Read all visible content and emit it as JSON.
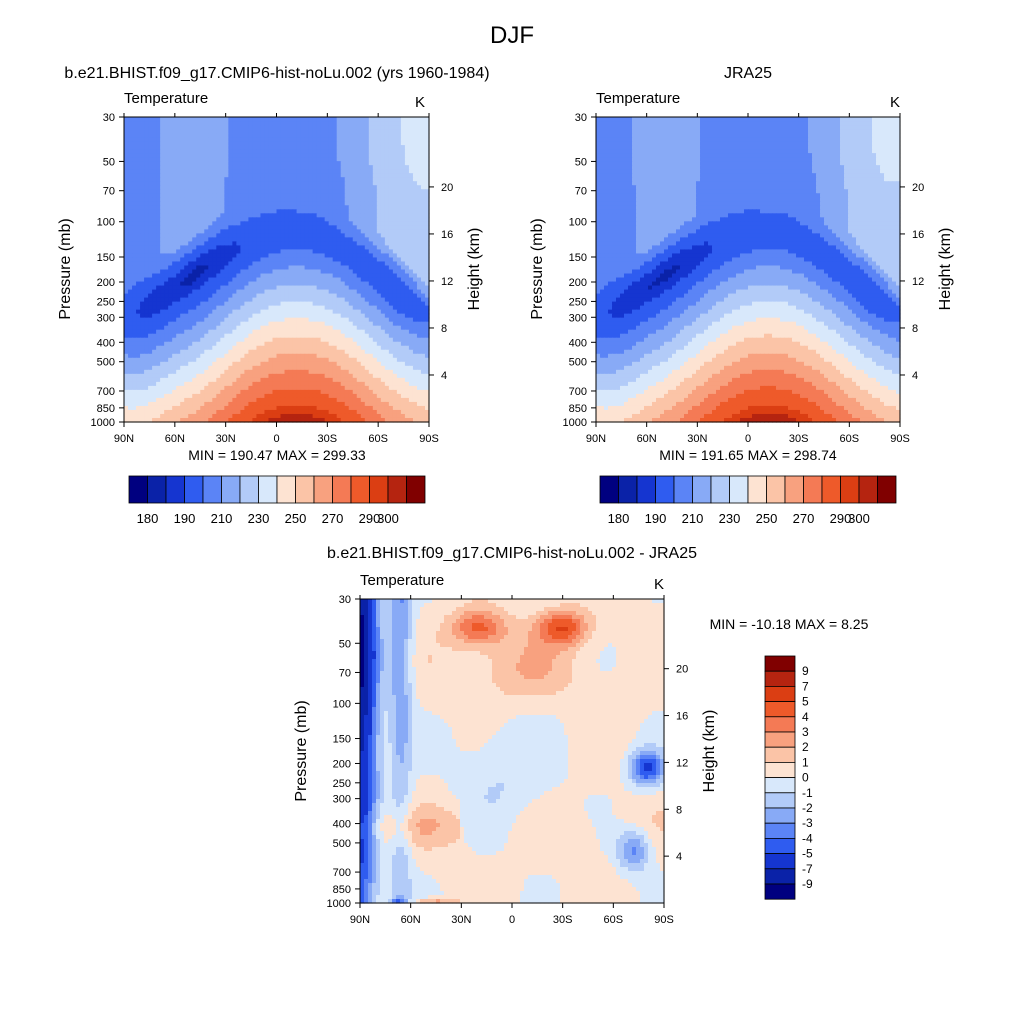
{
  "page_title": "DJF",
  "chart_data": [
    {
      "type": "heatmap",
      "panel": "model",
      "title": "b.e21.BHIST.f09_g17.CMIP6-hist-noLu.002 (yrs 1960-1984)",
      "variable_label": "Temperature",
      "units_label": "K",
      "xlabel": "",
      "ylabel": "Pressure (mb)",
      "ylabel_right": "Height (km)",
      "x_ticks": [
        "90N",
        "60N",
        "30N",
        "0",
        "30S",
        "60S",
        "90S"
      ],
      "y_ticks_pressure": [
        30,
        50,
        70,
        100,
        150,
        200,
        250,
        300,
        400,
        500,
        700,
        850,
        1000
      ],
      "y_ticks_height_km": [
        4,
        8,
        12,
        16,
        20
      ],
      "y_scale": "log",
      "ylim": [
        1000,
        30
      ],
      "xlim": [
        90,
        -90
      ],
      "min": 190.47,
      "max": 299.33,
      "stats_text": "MIN = 190.47  MAX = 299.33",
      "colorbar_orientation": "horizontal",
      "colorbar_labels": [
        "180",
        "190",
        "210",
        "230",
        "250",
        "270",
        "290",
        "300"
      ],
      "contour_levels": [
        180,
        185,
        190,
        200,
        210,
        220,
        230,
        240,
        250,
        260,
        270,
        280,
        290,
        295,
        300
      ]
    },
    {
      "type": "heatmap",
      "panel": "reanalysis",
      "title": "JRA25",
      "variable_label": "Temperature",
      "units_label": "K",
      "xlabel": "",
      "ylabel": "Pressure (mb)",
      "ylabel_right": "Height (km)",
      "x_ticks": [
        "90N",
        "60N",
        "30N",
        "0",
        "30S",
        "60S",
        "90S"
      ],
      "y_ticks_pressure": [
        30,
        50,
        70,
        100,
        150,
        200,
        250,
        300,
        400,
        500,
        700,
        850,
        1000
      ],
      "y_ticks_height_km": [
        4,
        8,
        12,
        16,
        20
      ],
      "y_scale": "log",
      "ylim": [
        1000,
        30
      ],
      "xlim": [
        90,
        -90
      ],
      "min": 191.65,
      "max": 298.74,
      "stats_text": "MIN = 191.65  MAX = 298.74",
      "colorbar_orientation": "horizontal",
      "colorbar_labels": [
        "180",
        "190",
        "210",
        "230",
        "250",
        "270",
        "290",
        "300"
      ],
      "contour_levels": [
        180,
        185,
        190,
        200,
        210,
        220,
        230,
        240,
        250,
        260,
        270,
        280,
        290,
        295,
        300
      ]
    },
    {
      "type": "heatmap",
      "panel": "difference",
      "title": "b.e21.BHIST.f09_g17.CMIP6-hist-noLu.002 - JRA25",
      "variable_label": "Temperature",
      "units_label": "K",
      "xlabel": "",
      "ylabel": "Pressure (mb)",
      "ylabel_right": "Height (km)",
      "x_ticks": [
        "90N",
        "60N",
        "30N",
        "0",
        "30S",
        "60S",
        "90S"
      ],
      "y_ticks_pressure": [
        30,
        50,
        70,
        100,
        150,
        200,
        250,
        300,
        400,
        500,
        700,
        850,
        1000
      ],
      "y_ticks_height_km": [
        4,
        8,
        12,
        16,
        20
      ],
      "y_scale": "log",
      "ylim": [
        1000,
        30
      ],
      "xlim": [
        90,
        -90
      ],
      "min": -10.18,
      "max": 8.25,
      "stats_text": "MIN = -10.18  MAX =   8.25",
      "colorbar_orientation": "vertical",
      "colorbar_labels": [
        "9",
        "7",
        "5",
        "4",
        "3",
        "2",
        "1",
        "0",
        "-1",
        "-2",
        "-3",
        "-4",
        "-5",
        "-7",
        "-9"
      ],
      "contour_levels": [
        -9,
        -7,
        -5,
        -4,
        -3,
        -2,
        -1,
        0,
        1,
        2,
        3,
        4,
        5,
        7,
        9
      ]
    }
  ],
  "colormap": [
    "#000080",
    "#0a22a8",
    "#1535d0",
    "#2f5cf0",
    "#5b84f6",
    "#88aaf6",
    "#b2cbf8",
    "#d8e8fb",
    "#fde3d2",
    "#fbc4a7",
    "#f8a17f",
    "#f47a55",
    "#ee5a2a",
    "#db3e13",
    "#b52410",
    "#800000"
  ]
}
